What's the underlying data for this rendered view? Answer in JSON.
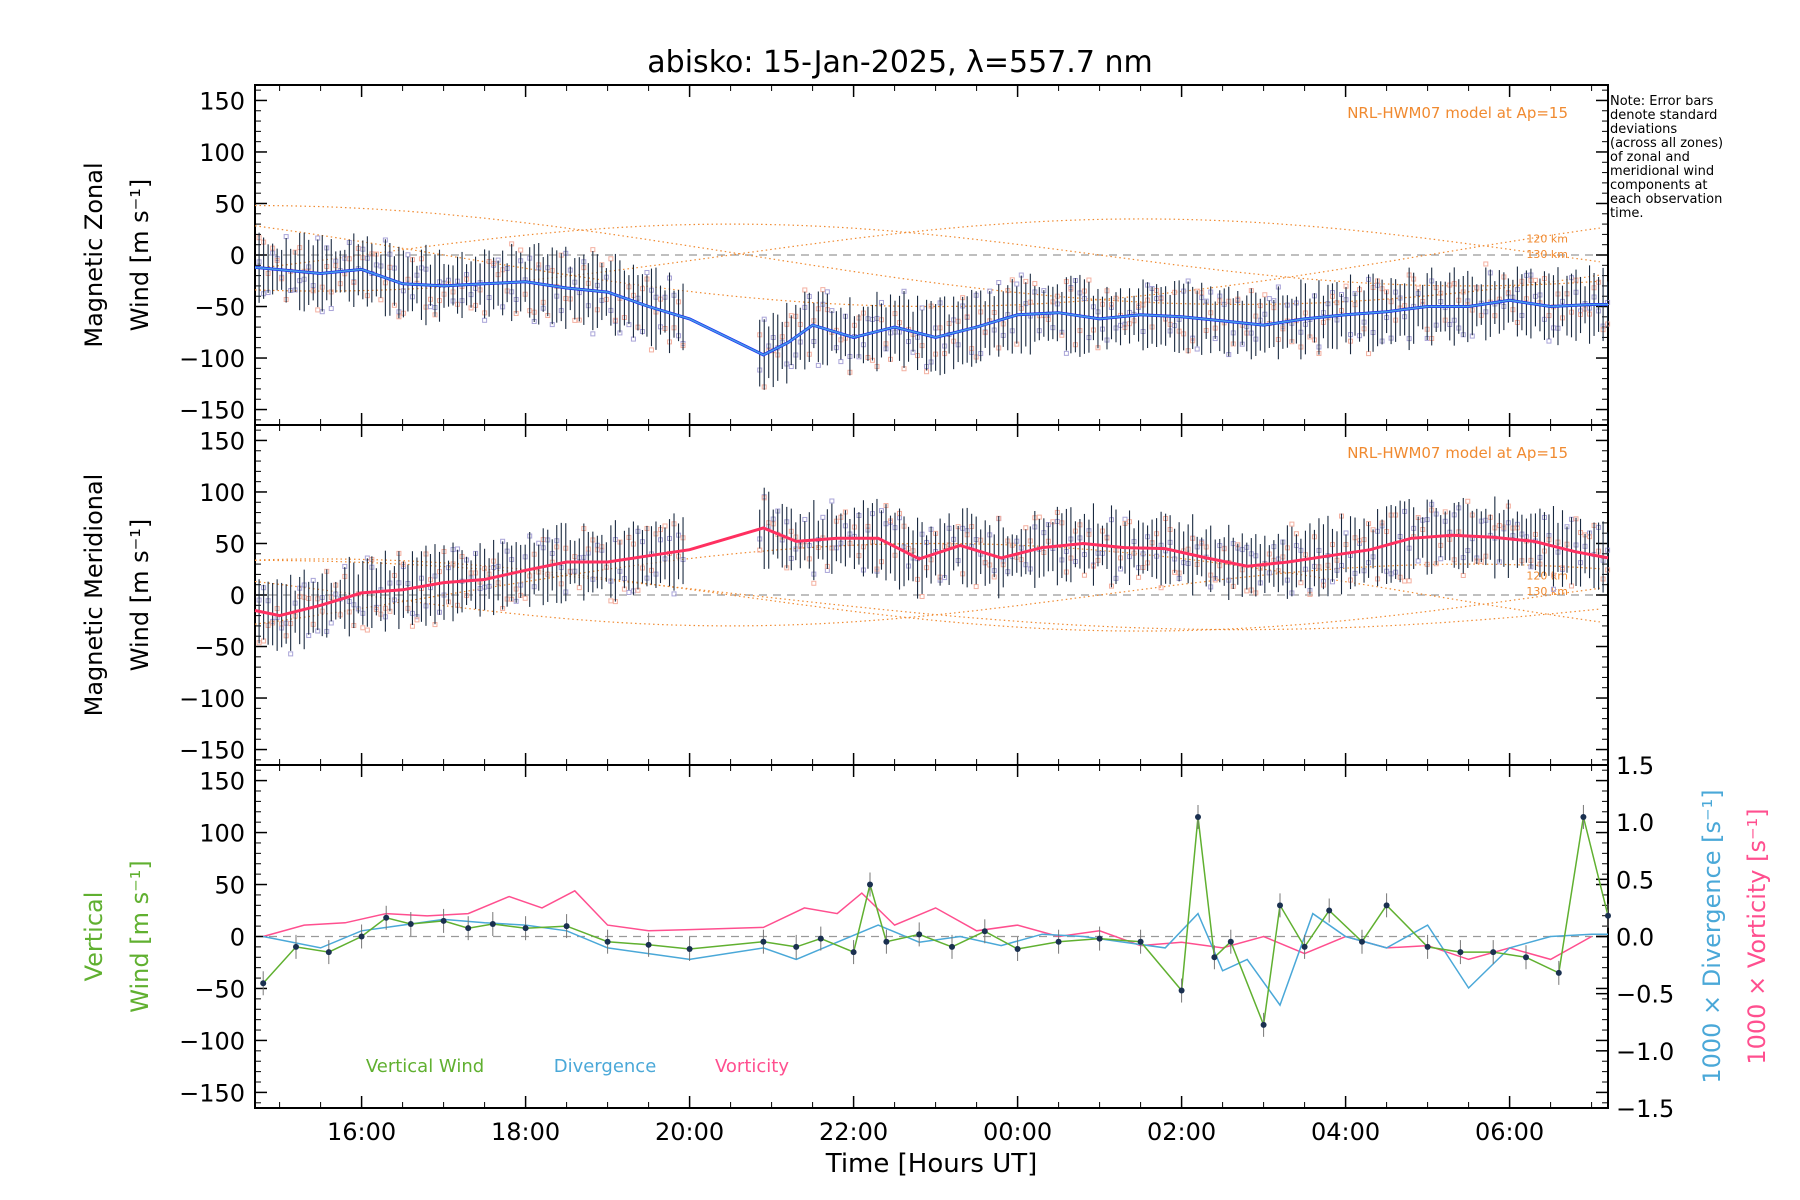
{
  "title": "abisko: 15-Jan-2025, λ=557.7 nm",
  "note_lines": [
    "Note: Error bars",
    "denote standard",
    "deviations",
    "(across all zones)",
    "of zonal and",
    "meridional wind",
    "components at",
    "each observation",
    "time."
  ],
  "model_label": "NRL-HWM07 model at Ap=15",
  "model_alt_labels": [
    "120 km",
    "130 km"
  ],
  "x_axis": {
    "label": "Time [Hours UT]",
    "ticks": [
      "16:00",
      "18:00",
      "20:00",
      "22:00",
      "00:00",
      "02:00",
      "04:00",
      "06:00"
    ]
  },
  "colors": {
    "zonal": "#2233ee",
    "zonal_smooth": "#4aa8e8",
    "meridional": "#ff3060",
    "model": "#f08a30",
    "scatter_purple": "#a9a4d8",
    "scatter_pink": "#f4b0a0",
    "errorbar": "#1a2a40",
    "vertical": "#60b030",
    "divergence": "#4aa8d8",
    "vorticity": "#ff4f8f"
  },
  "chart_data": [
    {
      "type": "line",
      "panel": "zonal",
      "ylabel_line1": "Magnetic Zonal",
      "ylabel_line2": "Wind [m s⁻¹]",
      "ylim": [
        -165,
        165
      ],
      "yticks": [
        "150",
        "100",
        "50",
        "0",
        "−50",
        "−100",
        "−150"
      ],
      "xlim_hours": [
        14.7,
        31.2
      ],
      "series": [
        {
          "x": [
            14.7,
            15.5,
            16.0,
            16.5,
            17.0,
            17.5,
            18.0,
            18.5,
            19.0,
            19.5,
            20.0,
            20.9,
            21.2,
            21.5,
            22.0,
            22.5,
            23.0,
            23.5,
            24.0,
            24.5,
            25.0,
            25.5,
            26.0,
            26.5,
            27.0,
            27.5,
            28.0,
            28.5,
            29.0,
            29.5,
            30.0,
            30.5,
            31.0,
            31.2
          ],
          "y": [
            -12,
            -18,
            -14,
            -28,
            -30,
            -28,
            -26,
            -32,
            -36,
            -50,
            -62,
            -97,
            -85,
            -68,
            -80,
            -70,
            -80,
            -70,
            -58,
            -56,
            -62,
            -58,
            -60,
            -64,
            -68,
            -62,
            -58,
            -55,
            -50,
            -50,
            -44,
            -50,
            -48,
            -48
          ]
        }
      ]
    },
    {
      "type": "line",
      "panel": "meridional",
      "ylabel_line1": "Magnetic Meridional",
      "ylabel_line2": "Wind [m s⁻¹]",
      "ylim": [
        -165,
        165
      ],
      "yticks": [
        "150",
        "100",
        "50",
        "0",
        "−50",
        "−100",
        "−150"
      ],
      "xlim_hours": [
        14.7,
        31.2
      ],
      "series": [
        {
          "x": [
            14.7,
            15.0,
            15.5,
            16.0,
            16.5,
            17.0,
            17.5,
            18.0,
            18.5,
            19.0,
            19.5,
            20.0,
            20.9,
            21.3,
            21.8,
            22.3,
            22.8,
            23.3,
            23.8,
            24.3,
            24.8,
            25.3,
            25.8,
            26.3,
            26.8,
            27.3,
            27.8,
            28.3,
            28.8,
            29.3,
            29.8,
            30.3,
            30.8,
            31.2
          ],
          "y": [
            -15,
            -20,
            -10,
            2,
            5,
            12,
            15,
            24,
            32,
            32,
            38,
            44,
            65,
            52,
            55,
            55,
            35,
            48,
            36,
            46,
            50,
            46,
            45,
            36,
            28,
            32,
            38,
            44,
            55,
            58,
            56,
            52,
            42,
            36
          ]
        }
      ]
    },
    {
      "type": "line",
      "panel": "vertical",
      "ylabel_line1": "Vertical",
      "ylabel_line2": "Wind [m s⁻¹]",
      "right_label1": "1000 × Divergence [s⁻¹]",
      "right_label2": "1000 × Vorticity [s⁻¹]",
      "ylim": [
        -165,
        165
      ],
      "yticks": [
        "150",
        "100",
        "50",
        "0",
        "−50",
        "−100",
        "−150"
      ],
      "right_ylim": [
        -1.5,
        1.5
      ],
      "right_yticks": [
        "1.5",
        "1.0",
        "0.5",
        "0.0",
        "−0.5",
        "−1.0",
        "−1.5"
      ],
      "legend": [
        "Vertical Wind",
        "Divergence",
        "Vorticity"
      ],
      "xlim_hours": [
        14.7,
        31.2
      ],
      "series": [
        {
          "name": "Vertical Wind",
          "x": [
            14.8,
            15.2,
            15.6,
            16.0,
            16.3,
            16.6,
            17.0,
            17.3,
            17.6,
            18.0,
            18.5,
            19.0,
            19.5,
            20.0,
            20.9,
            21.3,
            21.6,
            22.0,
            22.2,
            22.4,
            22.8,
            23.2,
            23.6,
            24.0,
            24.5,
            25.0,
            25.5,
            26.0,
            26.2,
            26.4,
            26.6,
            27.0,
            27.2,
            27.5,
            27.8,
            28.2,
            28.5,
            29.0,
            29.4,
            29.8,
            30.2,
            30.6,
            30.9,
            31.2
          ],
          "y": [
            -45,
            -10,
            -15,
            0,
            18,
            12,
            15,
            8,
            12,
            8,
            10,
            -5,
            -8,
            -12,
            -5,
            -10,
            -2,
            -15,
            50,
            -5,
            2,
            -10,
            5,
            -12,
            -5,
            -2,
            -5,
            -52,
            115,
            -20,
            -5,
            -85,
            30,
            -10,
            25,
            -5,
            30,
            -10,
            -15,
            -15,
            -20,
            -35,
            115,
            20
          ]
        },
        {
          "name": "Divergence",
          "x": [
            14.8,
            15.5,
            16.0,
            16.5,
            17.0,
            17.5,
            18.0,
            18.5,
            19.0,
            19.5,
            20.0,
            20.9,
            21.3,
            21.8,
            22.3,
            22.8,
            23.3,
            23.8,
            24.3,
            24.8,
            25.3,
            25.8,
            26.2,
            26.5,
            26.8,
            27.2,
            27.6,
            28.0,
            28.5,
            29.0,
            29.5,
            30.0,
            30.5,
            31.0,
            31.2
          ],
          "y": [
            0.0,
            -0.1,
            0.05,
            0.1,
            0.15,
            0.12,
            0.1,
            0.05,
            -0.1,
            -0.15,
            -0.2,
            -0.1,
            -0.2,
            -0.05,
            0.1,
            -0.05,
            0.0,
            -0.08,
            0.02,
            0.0,
            -0.05,
            -0.1,
            0.2,
            -0.3,
            -0.2,
            -0.6,
            0.2,
            0.0,
            -0.1,
            0.1,
            -0.45,
            -0.1,
            0.0,
            0.02,
            0.02
          ]
        },
        {
          "name": "Vorticity",
          "x": [
            14.8,
            15.3,
            15.8,
            16.3,
            16.8,
            17.3,
            17.8,
            18.2,
            18.6,
            19.0,
            19.5,
            20.0,
            20.9,
            21.4,
            21.8,
            22.1,
            22.5,
            23.0,
            23.5,
            24.0,
            24.5,
            25.0,
            25.5,
            26.0,
            26.5,
            27.0,
            27.5,
            28.0,
            28.5,
            29.0,
            29.5,
            30.0,
            30.5,
            31.0
          ],
          "y": [
            0.0,
            0.1,
            0.12,
            0.2,
            0.18,
            0.2,
            0.35,
            0.25,
            0.4,
            0.1,
            0.05,
            0.06,
            0.08,
            0.25,
            0.2,
            0.38,
            0.1,
            0.25,
            0.05,
            0.1,
            0.0,
            0.05,
            -0.08,
            -0.05,
            -0.1,
            0.0,
            -0.15,
            0.0,
            -0.1,
            -0.08,
            -0.2,
            -0.1,
            -0.2,
            0.0
          ]
        }
      ]
    }
  ]
}
